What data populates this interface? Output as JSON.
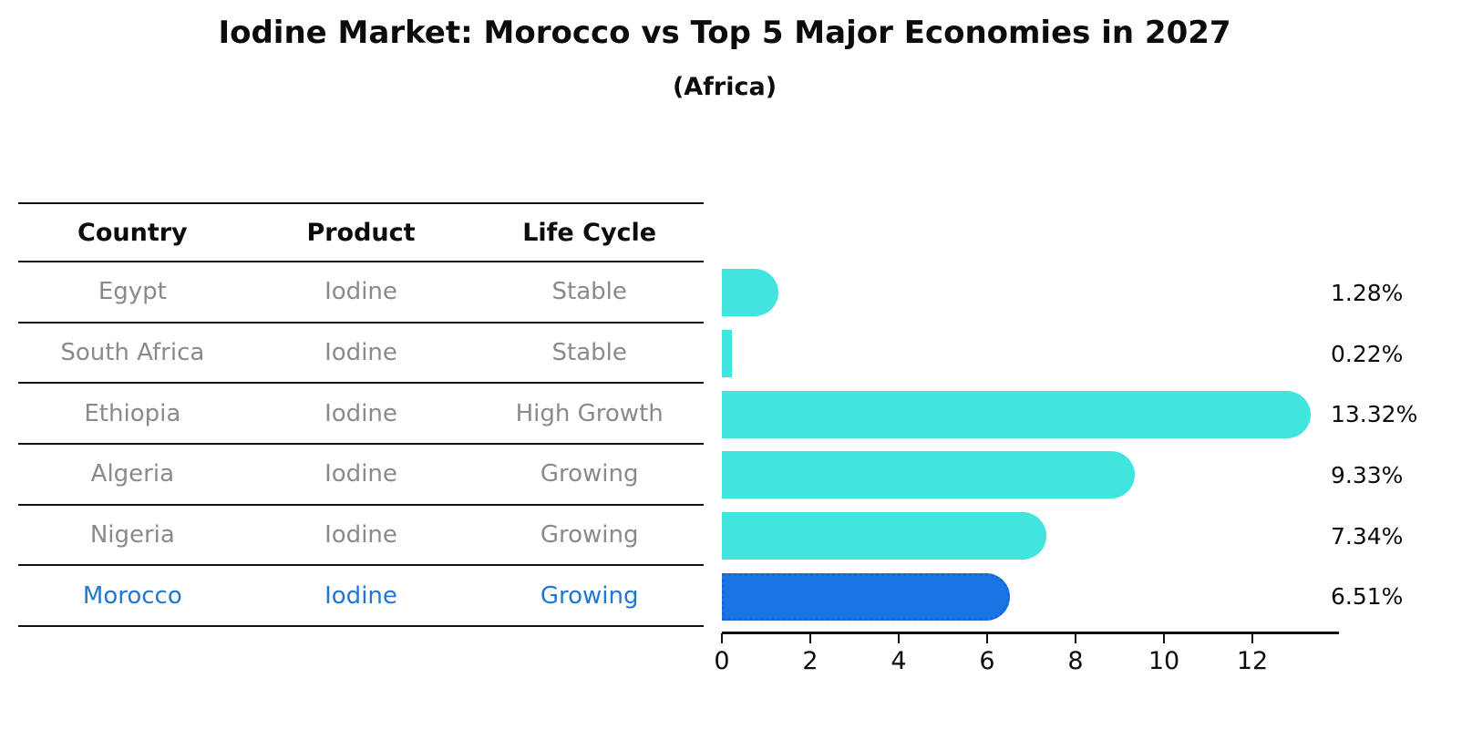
{
  "title": "Iodine Market: Morocco vs Top 5 Major Economies in 2027",
  "subtitle": "(Africa)",
  "table": {
    "headers": [
      "Country",
      "Product",
      "Life Cycle"
    ],
    "rows": [
      {
        "country": "Egypt",
        "product": "Iodine",
        "life_cycle": "Stable"
      },
      {
        "country": "South Africa",
        "product": "Iodine",
        "life_cycle": "Stable"
      },
      {
        "country": "Ethiopia",
        "product": "Iodine",
        "life_cycle": "High Growth"
      },
      {
        "country": "Algeria",
        "product": "Iodine",
        "life_cycle": "Growing"
      },
      {
        "country": "Nigeria",
        "product": "Iodine",
        "life_cycle": "Growing"
      },
      {
        "country": "Morocco",
        "product": "Iodine",
        "life_cycle": "Growing"
      }
    ]
  },
  "chart_data": {
    "type": "bar",
    "orientation": "horizontal",
    "title": "Iodine Market: Morocco vs Top 5 Major Economies in 2027",
    "subtitle": "(Africa)",
    "categories": [
      "Egypt",
      "South Africa",
      "Ethiopia",
      "Algeria",
      "Nigeria",
      "Morocco"
    ],
    "values": [
      1.28,
      0.22,
      13.32,
      9.33,
      7.34,
      6.51
    ],
    "value_labels": [
      "1.28%",
      "0.22%",
      "13.32%",
      "9.33%",
      "7.34%",
      "6.51%"
    ],
    "xlim": [
      0,
      14
    ],
    "xticks": [
      0,
      2,
      4,
      6,
      8,
      10,
      12
    ],
    "grid": false,
    "legend": false,
    "highlight_index": 5,
    "bar_color": "#42E4DE",
    "highlight_color": "#1B74E4",
    "highlight_border_color": "#1667D6",
    "highlight_text_color": "#1f77d4"
  }
}
